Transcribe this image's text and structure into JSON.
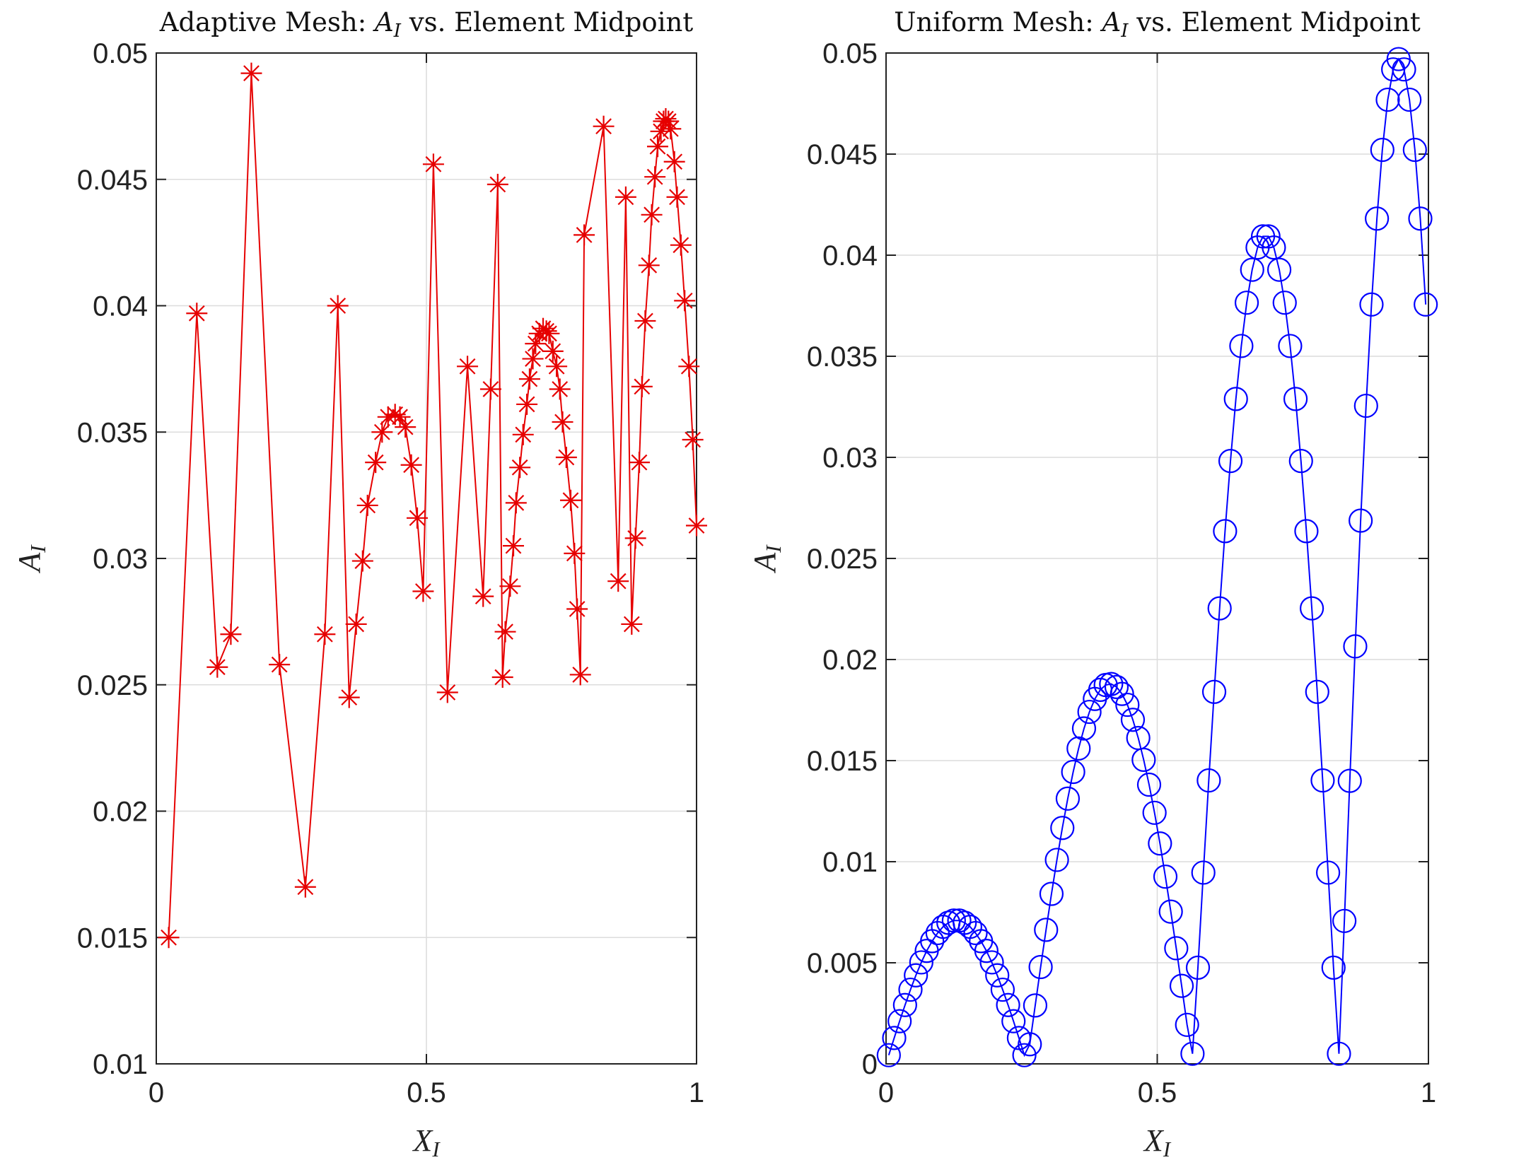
{
  "chart_data": [
    {
      "type": "line",
      "title": {
        "prefix": "Adaptive Mesh: ",
        "symbol": "A",
        "subscript": "I",
        "suffix": " vs. Element Midpoint"
      },
      "xlabel": {
        "symbol": "X",
        "subscript": "I"
      },
      "ylabel": {
        "symbol": "A",
        "subscript": "I"
      },
      "xlim": [
        0,
        1
      ],
      "ylim": [
        0.01,
        0.05
      ],
      "xticks": [
        "0",
        "0.5",
        "1"
      ],
      "xtick_values": [
        0,
        0.5,
        1
      ],
      "yticks": [
        "0.01",
        "0.015",
        "0.02",
        "0.025",
        "0.03",
        "0.035",
        "0.04",
        "0.045",
        "0.05"
      ],
      "ytick_values": [
        0.01,
        0.015,
        0.02,
        0.025,
        0.03,
        0.035,
        0.04,
        0.045,
        0.05
      ],
      "grid": true,
      "marker": "asterisk",
      "color": "#e60000",
      "x": [
        0.023,
        0.075,
        0.113,
        0.138,
        0.176,
        0.228,
        0.276,
        0.312,
        0.336,
        0.357,
        0.37,
        0.382,
        0.391,
        0.406,
        0.418,
        0.429,
        0.442,
        0.451,
        0.461,
        0.472,
        0.483,
        0.494,
        0.513,
        0.539,
        0.576,
        0.605,
        0.619,
        0.632,
        0.641,
        0.646,
        0.655,
        0.661,
        0.666,
        0.673,
        0.679,
        0.686,
        0.691,
        0.697,
        0.702,
        0.709,
        0.716,
        0.722,
        0.727,
        0.734,
        0.741,
        0.747,
        0.752,
        0.759,
        0.767,
        0.774,
        0.779,
        0.785,
        0.792,
        0.828,
        0.855,
        0.869,
        0.88,
        0.887,
        0.894,
        0.899,
        0.905,
        0.912,
        0.917,
        0.923,
        0.928,
        0.934,
        0.939,
        0.943,
        0.948,
        0.952,
        0.959,
        0.964,
        0.971,
        0.978,
        0.986,
        0.993,
        1.0
      ],
      "y": [
        0.015,
        0.0397,
        0.0257,
        0.027,
        0.0492,
        0.0258,
        0.017,
        0.027,
        0.04,
        0.0245,
        0.0274,
        0.0299,
        0.0321,
        0.0338,
        0.035,
        0.0356,
        0.0357,
        0.0356,
        0.0352,
        0.0337,
        0.0316,
        0.0287,
        0.0456,
        0.0247,
        0.0376,
        0.0285,
        0.0367,
        0.0448,
        0.0253,
        0.0271,
        0.0289,
        0.0305,
        0.0322,
        0.0336,
        0.0349,
        0.0361,
        0.0371,
        0.0379,
        0.0385,
        0.0389,
        0.0391,
        0.039,
        0.0389,
        0.0382,
        0.0376,
        0.0367,
        0.0354,
        0.034,
        0.0323,
        0.0302,
        0.028,
        0.0254,
        0.0428,
        0.0471,
        0.0291,
        0.0443,
        0.0274,
        0.0308,
        0.0338,
        0.0368,
        0.0394,
        0.0416,
        0.0436,
        0.0451,
        0.0463,
        0.0469,
        0.0473,
        0.0474,
        0.0473,
        0.047,
        0.0457,
        0.0443,
        0.0424,
        0.0402,
        0.0376,
        0.0347,
        0.0313
      ]
    },
    {
      "type": "line",
      "title": {
        "prefix": "Uniform Mesh: ",
        "symbol": "A",
        "subscript": "I",
        "suffix": " vs. Element Midpoint"
      },
      "xlabel": {
        "symbol": "X",
        "subscript": "I"
      },
      "ylabel": {
        "symbol": "A",
        "subscript": "I"
      },
      "xlim": [
        0,
        1
      ],
      "ylim": [
        0,
        0.05
      ],
      "xticks": [
        "0",
        "0.5",
        "1"
      ],
      "xtick_values": [
        0,
        0.5,
        1
      ],
      "yticks": [
        "0",
        "0.005",
        "0.01",
        "0.015",
        "0.02",
        "0.025",
        "0.03",
        "0.035",
        "0.04",
        "0.045",
        "0.05"
      ],
      "ytick_values": [
        0,
        0.005,
        0.01,
        0.015,
        0.02,
        0.025,
        0.03,
        0.035,
        0.04,
        0.045,
        0.05
      ],
      "grid": true,
      "marker": "circle",
      "color": "#0000ff",
      "x_start": 0.005,
      "x_step": 0.01,
      "y": [
        0.00043,
        0.00128,
        0.00211,
        0.00291,
        0.00367,
        0.00438,
        0.00502,
        0.00559,
        0.00607,
        0.00647,
        0.00678,
        0.00698,
        0.00709,
        0.00709,
        0.00698,
        0.00678,
        0.00647,
        0.00607,
        0.00559,
        0.00502,
        0.00438,
        0.00367,
        0.00291,
        0.00211,
        0.00128,
        0.00043,
        0.00097,
        0.00289,
        0.00479,
        0.00663,
        0.00841,
        0.01009,
        0.01167,
        0.01312,
        0.01444,
        0.0156,
        0.01659,
        0.01741,
        0.01805,
        0.0185,
        0.01874,
        0.01879,
        0.01864,
        0.0183,
        0.01776,
        0.01702,
        0.01612,
        0.01504,
        0.01381,
        0.01242,
        0.0109,
        0.00926,
        0.00753,
        0.00572,
        0.00386,
        0.00193,
        0.0005,
        0.00476,
        0.00946,
        0.01402,
        0.0184,
        0.02253,
        0.02635,
        0.02982,
        0.03289,
        0.03551,
        0.03765,
        0.03928,
        0.04038,
        0.04093,
        0.04093,
        0.04038,
        0.03928,
        0.03765,
        0.03551,
        0.03289,
        0.02982,
        0.02635,
        0.02253,
        0.0184,
        0.01402,
        0.00946,
        0.00476,
        0.0005,
        0.00707,
        0.014,
        0.02065,
        0.02687,
        0.03255,
        0.03756,
        0.04181,
        0.04521,
        0.04769,
        0.04919,
        0.0497,
        0.04919,
        0.04769,
        0.04521,
        0.04181,
        0.03756
      ]
    }
  ]
}
